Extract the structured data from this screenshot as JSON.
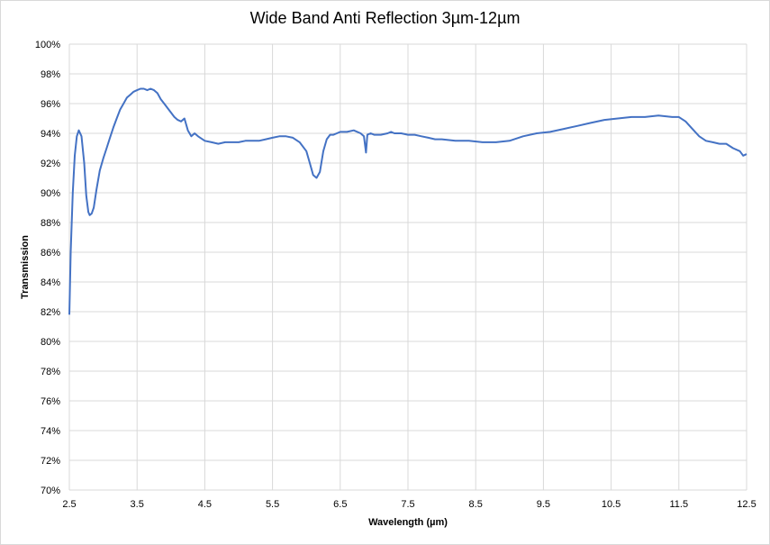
{
  "chart_data": {
    "type": "line",
    "title": "Wide Band Anti Reflection 3µm-12µm",
    "xlabel": "Wavelength (µm)",
    "ylabel": "Transmission",
    "xlim": [
      2.5,
      12.5
    ],
    "ylim": [
      70,
      100
    ],
    "x_ticks": [
      2.5,
      3.5,
      4.5,
      5.5,
      6.5,
      7.5,
      8.5,
      9.5,
      10.5,
      11.5,
      12.5
    ],
    "x_tick_labels": [
      "2.5",
      "3.5",
      "4.5",
      "5.5",
      "6.5",
      "7.5",
      "8.5",
      "9.5",
      "10.5",
      "11.5",
      "12.5"
    ],
    "y_ticks": [
      70,
      72,
      74,
      76,
      78,
      80,
      82,
      84,
      86,
      88,
      90,
      92,
      94,
      96,
      98,
      100
    ],
    "y_tick_labels": [
      "70%",
      "72%",
      "74%",
      "76%",
      "78%",
      "80%",
      "82%",
      "84%",
      "86%",
      "88%",
      "90%",
      "92%",
      "94%",
      "96%",
      "98%",
      "100%"
    ],
    "grid": true,
    "line_color": "#4472c4",
    "series": [
      {
        "x": [
          2.5,
          2.52,
          2.55,
          2.58,
          2.61,
          2.64,
          2.68,
          2.72,
          2.75,
          2.78,
          2.8,
          2.83,
          2.86,
          2.9,
          2.95,
          3.0,
          3.05,
          3.1,
          3.15,
          3.2,
          3.25,
          3.3,
          3.35,
          3.4,
          3.45,
          3.5,
          3.55,
          3.6,
          3.65,
          3.7,
          3.75,
          3.8,
          3.85,
          3.9,
          3.95,
          4.0,
          4.05,
          4.1,
          4.15,
          4.2,
          4.25,
          4.3,
          4.35,
          4.4,
          4.5,
          4.6,
          4.7,
          4.8,
          4.9,
          5.0,
          5.1,
          5.2,
          5.3,
          5.4,
          5.5,
          5.6,
          5.7,
          5.8,
          5.9,
          6.0,
          6.05,
          6.1,
          6.15,
          6.2,
          6.25,
          6.3,
          6.35,
          6.4,
          6.45,
          6.5,
          6.6,
          6.7,
          6.8,
          6.85,
          6.88,
          6.9,
          6.95,
          7.0,
          7.1,
          7.2,
          7.25,
          7.3,
          7.4,
          7.5,
          7.6,
          7.7,
          7.8,
          7.9,
          8.0,
          8.2,
          8.4,
          8.6,
          8.8,
          9.0,
          9.2,
          9.4,
          9.6,
          9.8,
          10.0,
          10.2,
          10.4,
          10.6,
          10.8,
          11.0,
          11.2,
          11.4,
          11.5,
          11.6,
          11.7,
          11.8,
          11.9,
          12.0,
          12.1,
          12.2,
          12.3,
          12.4,
          12.45,
          12.5
        ],
        "values": [
          81.8,
          86.0,
          90.0,
          92.5,
          93.8,
          94.2,
          93.8,
          92.0,
          89.8,
          88.7,
          88.5,
          88.6,
          89.0,
          90.2,
          91.5,
          92.3,
          93.0,
          93.7,
          94.4,
          95.0,
          95.6,
          96.0,
          96.4,
          96.6,
          96.8,
          96.9,
          97.0,
          97.0,
          96.9,
          97.0,
          96.9,
          96.7,
          96.3,
          96.0,
          95.7,
          95.4,
          95.1,
          94.9,
          94.8,
          95.0,
          94.2,
          93.8,
          94.0,
          93.8,
          93.5,
          93.4,
          93.3,
          93.4,
          93.4,
          93.4,
          93.5,
          93.5,
          93.5,
          93.6,
          93.7,
          93.8,
          93.8,
          93.7,
          93.4,
          92.8,
          92.0,
          91.2,
          91.0,
          91.4,
          92.8,
          93.6,
          93.9,
          93.9,
          94.0,
          94.1,
          94.1,
          94.2,
          94.0,
          93.8,
          92.7,
          93.9,
          94.0,
          93.9,
          93.9,
          94.0,
          94.1,
          94.0,
          94.0,
          93.9,
          93.9,
          93.8,
          93.7,
          93.6,
          93.6,
          93.5,
          93.5,
          93.4,
          93.4,
          93.5,
          93.8,
          94.0,
          94.1,
          94.3,
          94.5,
          94.7,
          94.9,
          95.0,
          95.1,
          95.1,
          95.2,
          95.1,
          95.1,
          94.8,
          94.3,
          93.8,
          93.5,
          93.4,
          93.3,
          93.3,
          93.0,
          92.8,
          92.5,
          92.6
        ]
      }
    ]
  }
}
